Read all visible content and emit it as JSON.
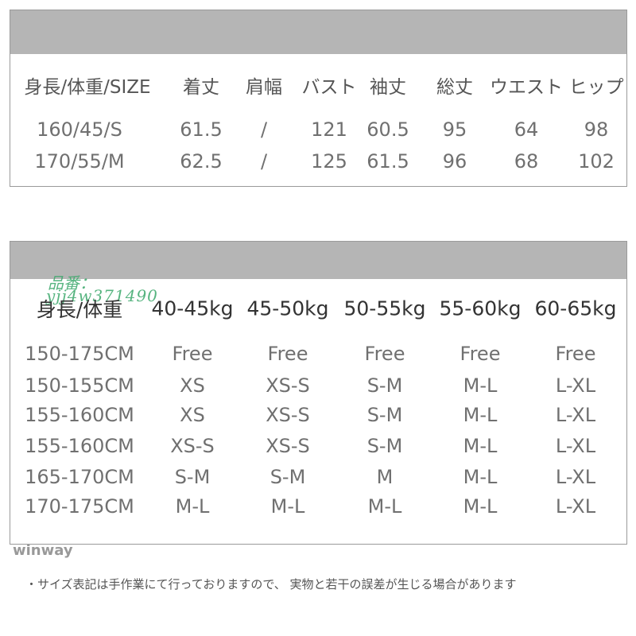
{
  "table1": {
    "headers": [
      "身長/体重/SIZE",
      "着丈",
      "肩幅",
      "バスト",
      "袖丈",
      "総丈",
      "ウエスト",
      "ヒップ"
    ],
    "rows": [
      [
        "160/45/S",
        "61.5",
        "/",
        "121",
        "60.5",
        "95",
        "64",
        "98"
      ],
      [
        "170/55/M",
        "62.5",
        "/",
        "125",
        "61.5",
        "96",
        "68",
        "102"
      ]
    ]
  },
  "table2": {
    "headers": [
      "身長/体重",
      "40-45kg",
      "45-50kg",
      "50-55kg",
      "55-60kg",
      "60-65kg"
    ],
    "rows": [
      [
        "150-175CM",
        "Free",
        "Free",
        "Free",
        "Free",
        "Free"
      ],
      [
        "150-155CM",
        "XS",
        "XS-S",
        "S-M",
        "M-L",
        "L-XL"
      ],
      [
        "155-160CM",
        "XS",
        "XS-S",
        "S-M",
        "M-L",
        "L-XL"
      ],
      [
        "155-160CM",
        "XS-S",
        "XS-S",
        "S-M",
        "M-L",
        "L-XL"
      ],
      [
        "165-170CM",
        "S-M",
        "S-M",
        "M",
        "M-L",
        "L-XL"
      ],
      [
        "170-175CM",
        "M-L",
        "M-L",
        "M-L",
        "M-L",
        "L-XL"
      ]
    ]
  },
  "watermark": {
    "line1": "品番：",
    "line2": "yjj4w371490"
  },
  "brand": "winway",
  "note": "・サイズ表記は手作業にて行っておりますので、 実物と若干の誤差が生じる場合があります"
}
